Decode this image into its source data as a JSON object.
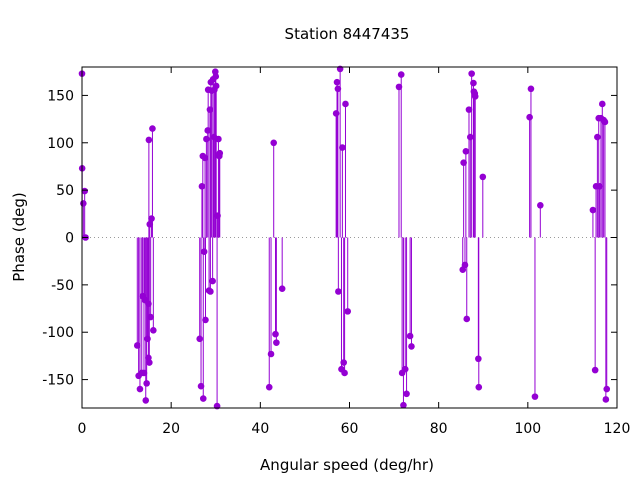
{
  "chart_data": {
    "type": "scatter",
    "style": "impulses-with-points",
    "title": "Station 8447435",
    "xlabel": "Angular speed (deg/hr)",
    "ylabel": "Phase (deg)",
    "xlim": [
      0,
      120
    ],
    "ylim": [
      -180,
      180
    ],
    "xticks": [
      0,
      20,
      40,
      60,
      80,
      100,
      120
    ],
    "yticks": [
      -150,
      -100,
      -50,
      0,
      50,
      100,
      150
    ],
    "grid": false,
    "zero_line": "dotted",
    "series_color": "#9400d3",
    "points": [
      {
        "x": 0.0,
        "y": 173
      },
      {
        "x": 0.04,
        "y": 73
      },
      {
        "x": 0.3,
        "y": 36
      },
      {
        "x": 0.6,
        "y": 49
      },
      {
        "x": 0.8,
        "y": 0
      },
      {
        "x": 12.4,
        "y": -114
      },
      {
        "x": 12.7,
        "y": -146
      },
      {
        "x": 13.0,
        "y": -160
      },
      {
        "x": 13.4,
        "y": -143
      },
      {
        "x": 13.6,
        "y": -62
      },
      {
        "x": 13.9,
        "y": -143
      },
      {
        "x": 14.1,
        "y": -66
      },
      {
        "x": 14.3,
        "y": -172
      },
      {
        "x": 14.5,
        "y": -154
      },
      {
        "x": 14.7,
        "y": -107
      },
      {
        "x": 14.9,
        "y": -127
      },
      {
        "x": 15.1,
        "y": -132
      },
      {
        "x": 14.9,
        "y": -70
      },
      {
        "x": 15.0,
        "y": 103
      },
      {
        "x": 15.2,
        "y": 14
      },
      {
        "x": 15.4,
        "y": -84
      },
      {
        "x": 15.6,
        "y": 20
      },
      {
        "x": 15.8,
        "y": 115
      },
      {
        "x": 16.0,
        "y": -98
      },
      {
        "x": 26.4,
        "y": -107
      },
      {
        "x": 26.7,
        "y": -157
      },
      {
        "x": 26.9,
        "y": 54
      },
      {
        "x": 27.1,
        "y": 86
      },
      {
        "x": 27.2,
        "y": -170
      },
      {
        "x": 27.4,
        "y": -15
      },
      {
        "x": 27.6,
        "y": 84
      },
      {
        "x": 27.7,
        "y": -87
      },
      {
        "x": 27.9,
        "y": 104
      },
      {
        "x": 28.2,
        "y": 113
      },
      {
        "x": 28.3,
        "y": 156
      },
      {
        "x": 28.5,
        "y": -56
      },
      {
        "x": 28.7,
        "y": 135
      },
      {
        "x": 28.8,
        "y": -57
      },
      {
        "x": 28.9,
        "y": 164
      },
      {
        "x": 29.1,
        "y": 155
      },
      {
        "x": 29.3,
        "y": -46
      },
      {
        "x": 29.4,
        "y": 167
      },
      {
        "x": 29.6,
        "y": 106
      },
      {
        "x": 29.7,
        "y": 156
      },
      {
        "x": 29.9,
        "y": 175
      },
      {
        "x": 30.0,
        "y": 170
      },
      {
        "x": 30.1,
        "y": 160
      },
      {
        "x": 30.3,
        "y": -178
      },
      {
        "x": 30.4,
        "y": 23
      },
      {
        "x": 30.6,
        "y": 104
      },
      {
        "x": 30.8,
        "y": 86
      },
      {
        "x": 30.9,
        "y": 89
      },
      {
        "x": 42.0,
        "y": -158
      },
      {
        "x": 42.4,
        "y": -123
      },
      {
        "x": 43.0,
        "y": 100
      },
      {
        "x": 43.4,
        "y": -102
      },
      {
        "x": 43.6,
        "y": -111
      },
      {
        "x": 44.9,
        "y": -54
      },
      {
        "x": 57.0,
        "y": 131
      },
      {
        "x": 57.2,
        "y": 164
      },
      {
        "x": 57.4,
        "y": 157
      },
      {
        "x": 57.5,
        "y": -57
      },
      {
        "x": 57.9,
        "y": 178
      },
      {
        "x": 58.2,
        "y": -139
      },
      {
        "x": 58.4,
        "y": 95
      },
      {
        "x": 58.7,
        "y": -132
      },
      {
        "x": 58.9,
        "y": -143
      },
      {
        "x": 59.1,
        "y": 141
      },
      {
        "x": 59.6,
        "y": -78
      },
      {
        "x": 71.1,
        "y": 159
      },
      {
        "x": 71.6,
        "y": 172
      },
      {
        "x": 71.8,
        "y": -143
      },
      {
        "x": 72.1,
        "y": -177
      },
      {
        "x": 72.5,
        "y": -139
      },
      {
        "x": 72.8,
        "y": -165
      },
      {
        "x": 73.6,
        "y": -104
      },
      {
        "x": 73.9,
        "y": -115
      },
      {
        "x": 85.4,
        "y": -34
      },
      {
        "x": 85.6,
        "y": 79
      },
      {
        "x": 85.9,
        "y": -29
      },
      {
        "x": 86.1,
        "y": 91
      },
      {
        "x": 86.3,
        "y": -86
      },
      {
        "x": 86.8,
        "y": 135
      },
      {
        "x": 87.1,
        "y": 106
      },
      {
        "x": 87.4,
        "y": 173
      },
      {
        "x": 87.8,
        "y": 163
      },
      {
        "x": 87.9,
        "y": 154
      },
      {
        "x": 88.1,
        "y": 152
      },
      {
        "x": 88.2,
        "y": 149
      },
      {
        "x": 88.9,
        "y": -128
      },
      {
        "x": 89.0,
        "y": -158
      },
      {
        "x": 89.9,
        "y": 64
      },
      {
        "x": 100.4,
        "y": 127
      },
      {
        "x": 100.7,
        "y": 157
      },
      {
        "x": 101.6,
        "y": -168
      },
      {
        "x": 102.8,
        "y": 34
      },
      {
        "x": 114.6,
        "y": 29
      },
      {
        "x": 115.1,
        "y": -140
      },
      {
        "x": 115.3,
        "y": 54
      },
      {
        "x": 115.6,
        "y": 106
      },
      {
        "x": 115.9,
        "y": 126
      },
      {
        "x": 116.1,
        "y": 54
      },
      {
        "x": 116.4,
        "y": 126
      },
      {
        "x": 116.7,
        "y": 141
      },
      {
        "x": 117.0,
        "y": 124
      },
      {
        "x": 117.3,
        "y": 122
      },
      {
        "x": 117.5,
        "y": -171
      },
      {
        "x": 117.7,
        "y": -160
      }
    ]
  }
}
